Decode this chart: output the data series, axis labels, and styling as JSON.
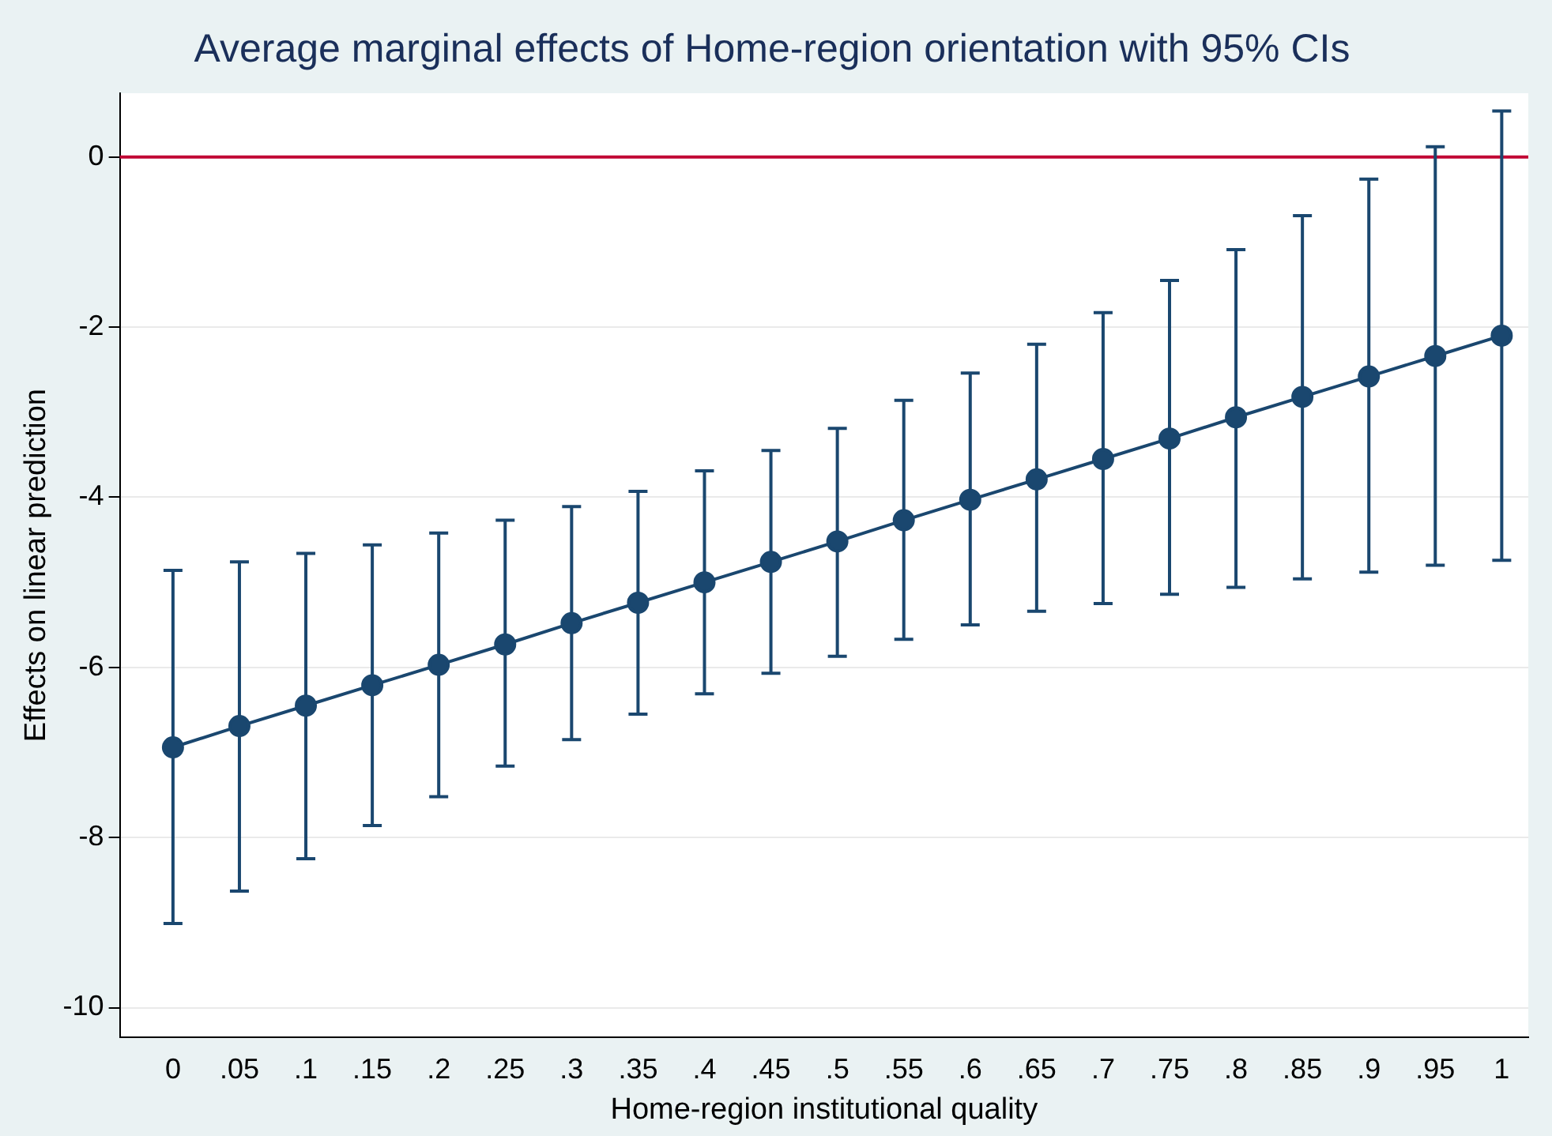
{
  "chart_data": {
    "type": "line",
    "title": "Average marginal effects of Home-region orientation with 95% CIs",
    "xlabel": "Home-region institutional quality",
    "ylabel": "Effects on linear prediction",
    "x": [
      0,
      0.05,
      0.1,
      0.15,
      0.2,
      0.25,
      0.3,
      0.35,
      0.4,
      0.45,
      0.5,
      0.55,
      0.6,
      0.65,
      0.7,
      0.75,
      0.8,
      0.85,
      0.9,
      0.95,
      1
    ],
    "series": [
      {
        "color": "#1a476f",
        "values": [
          -6.94,
          -6.69,
          -6.45,
          -6.21,
          -5.97,
          -5.73,
          -5.48,
          -5.24,
          -5.0,
          -4.76,
          -4.52,
          -4.27,
          -4.03,
          -3.79,
          -3.55,
          -3.31,
          -3.06,
          -2.82,
          -2.58,
          -2.34,
          -2.1
        ],
        "errors": [
          [
            -9.01,
            -4.86
          ],
          [
            -8.63,
            -4.76
          ],
          [
            -8.25,
            -4.66
          ],
          [
            -7.86,
            -4.56
          ],
          [
            -7.52,
            -4.42
          ],
          [
            -7.16,
            -4.27
          ],
          [
            -6.85,
            -4.11
          ],
          [
            -6.55,
            -3.93
          ],
          [
            -6.31,
            -3.69
          ],
          [
            -6.07,
            -3.45
          ],
          [
            -5.87,
            -3.19
          ],
          [
            -5.67,
            -2.86
          ],
          [
            -5.5,
            -2.54
          ],
          [
            -5.34,
            -2.2
          ],
          [
            -5.25,
            -1.83
          ],
          [
            -5.14,
            -1.45
          ],
          [
            -5.06,
            -1.09
          ],
          [
            -4.96,
            -0.69
          ],
          [
            -4.88,
            -0.26
          ],
          [
            -4.8,
            0.12
          ],
          [
            -4.74,
            0.54
          ]
        ]
      }
    ],
    "xlim": [
      -0.04,
      1.02
    ],
    "xticks": [
      0,
      {
        "value": 0.05,
        "label": ".05"
      },
      {
        "value": 0.1,
        "label": ".1"
      },
      {
        "value": 0.15,
        "label": ".15"
      },
      {
        "value": 0.2,
        "label": ".2"
      },
      {
        "value": 0.25,
        "label": ".25"
      },
      {
        "value": 0.3,
        "label": ".3"
      },
      {
        "value": 0.35,
        "label": ".35"
      },
      {
        "value": 0.4,
        "label": ".4"
      },
      {
        "value": 0.45,
        "label": ".45"
      },
      {
        "value": 0.5,
        "label": ".5"
      },
      {
        "value": 0.55,
        "label": ".55"
      },
      {
        "value": 0.6,
        "label": ".6"
      },
      {
        "value": 0.65,
        "label": ".65"
      },
      {
        "value": 0.7,
        "label": ".7"
      },
      {
        "value": 0.75,
        "label": ".75"
      },
      {
        "value": 0.8,
        "label": ".8"
      },
      {
        "value": 0.85,
        "label": ".85"
      },
      {
        "value": 0.9,
        "label": ".9"
      },
      {
        "value": 0.95,
        "label": ".95"
      },
      1
    ],
    "ylim": [
      -10.35,
      0.75
    ],
    "yticks": [
      -10,
      -8,
      -6,
      -4,
      -2,
      0
    ],
    "ref_lines": [
      {
        "axis": "y",
        "value": 0,
        "color": "#c10534"
      }
    ],
    "grid": "y",
    "marker": "circle",
    "line_style": "solid",
    "legend": false
  }
}
